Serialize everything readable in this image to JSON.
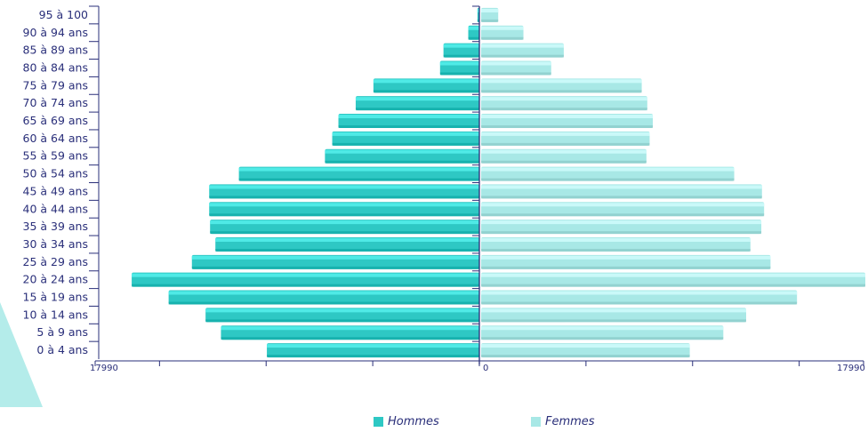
{
  "chart_data": {
    "type": "bar",
    "orientation": "horizontal-pyramid",
    "categories": [
      "0 à 4 ans",
      "5 à 9 ans",
      "10 à 14 ans",
      "15 à 19 ans",
      "20 à 24 ans",
      "25 à 29 ans",
      "30 à 34 ans",
      "35 à 39 ans",
      "40 à 44 ans",
      "45 à 49 ans",
      "50 à 54 ans",
      "55 à 59 ans",
      "60 à 64 ans",
      "65 à 69 ans",
      "70 à 74 ans",
      "75 à 79 ans",
      "80 à 84 ans",
      "85 à 89 ans",
      "90 à 94 ans",
      "95 à 100"
    ],
    "series": [
      {
        "name": "Hommes",
        "color": "#2ec8c4",
        "values": [
          9950,
          12100,
          12820,
          14550,
          16280,
          13460,
          12360,
          12610,
          12650,
          12650,
          11260,
          7230,
          6890,
          6600,
          5790,
          4960,
          1840,
          1680,
          520,
          90
        ]
      },
      {
        "name": "Femmes",
        "color": "#a8e8e6",
        "values": [
          9770,
          11340,
          12410,
          14790,
          17990,
          13550,
          12610,
          13120,
          13250,
          13150,
          11850,
          7740,
          7890,
          8040,
          7780,
          7520,
          3280,
          3870,
          1980,
          800
        ]
      }
    ],
    "xlim": [
      0,
      17990
    ],
    "tick_labels": {
      "left": "17990",
      "center": "0",
      "right": "17990"
    }
  },
  "legend": {
    "men": "Hommes",
    "women": "Femmes"
  },
  "colors": {
    "men": "#2ec8c4",
    "women": "#a8e8e6",
    "axis": "#2a2f7a",
    "decoration": "#b4ecea"
  }
}
